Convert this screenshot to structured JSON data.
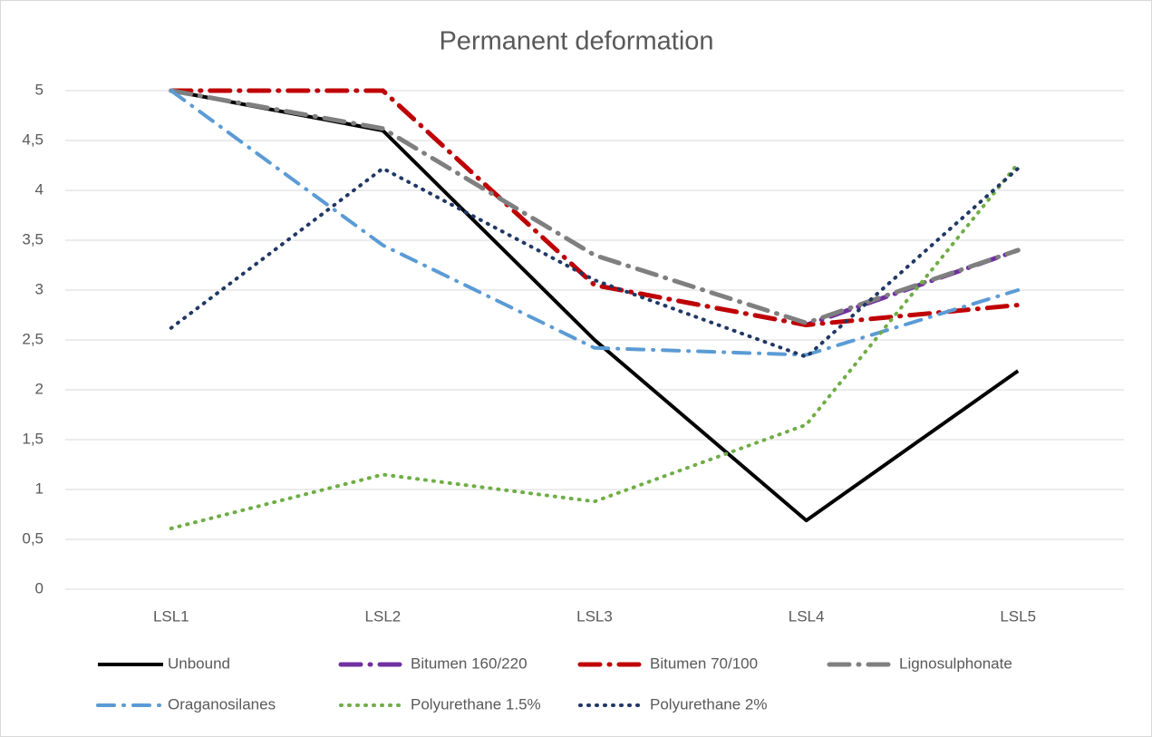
{
  "chart_data": {
    "type": "line",
    "title": "Permanent deformation",
    "categories": [
      "LSL1",
      "LSL2",
      "LSL3",
      "LSL4",
      "LSL5"
    ],
    "series": [
      {
        "name": "Unbound",
        "color": "#000000",
        "values": [
          5,
          4.6,
          2.5,
          0.69,
          2.19
        ]
      },
      {
        "name": "Bitumen 160/220",
        "color": "#7030a0",
        "values": [
          5,
          5,
          3.05,
          2.65,
          3.4
        ]
      },
      {
        "name": "Bitumen 70/100",
        "color": "#c00000",
        "values": [
          5,
          5,
          3.05,
          2.65,
          2.85
        ]
      },
      {
        "name": "Lignosulphonate",
        "color": "#7f7f7f",
        "values": [
          5,
          4.62,
          3.35,
          2.67,
          3.4
        ]
      },
      {
        "name": "Oraganosilanes",
        "color": "#5b9bd5",
        "values": [
          5,
          3.45,
          2.42,
          2.35,
          3.0
        ]
      },
      {
        "name": "Polyurethane 1.5%",
        "color": "#70ad47",
        "values": [
          0.61,
          1.15,
          0.88,
          1.65,
          4.27
        ]
      },
      {
        "name": "Polyurethane 2%",
        "color": "#203864",
        "values": [
          2.62,
          4.22,
          3.1,
          2.33,
          4.22
        ]
      }
    ],
    "ylim": [
      0,
      5
    ],
    "yticks": [
      0,
      {
        "value": 0.5,
        "label": "0,5"
      },
      1,
      {
        "value": 1.5,
        "label": "1,5"
      },
      2,
      {
        "value": 2.5,
        "label": "2,5"
      },
      3,
      {
        "value": 3.5,
        "label": "3,5"
      },
      4,
      {
        "value": 4.5,
        "label": "4,5"
      },
      5
    ],
    "grid": true,
    "legend": "bottom"
  }
}
